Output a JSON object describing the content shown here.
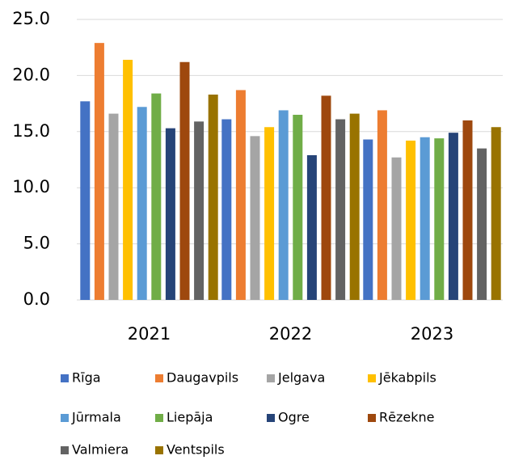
{
  "chart_data": {
    "type": "bar",
    "categories": [
      "2021",
      "2022",
      "2023"
    ],
    "series": [
      {
        "name": "Rīga",
        "color": "#4472c4",
        "values": [
          17.7,
          16.1,
          14.3
        ]
      },
      {
        "name": "Daugavpils",
        "color": "#ed7d31",
        "values": [
          22.9,
          18.7,
          16.9
        ]
      },
      {
        "name": "Jelgava",
        "color": "#a5a5a5",
        "values": [
          16.6,
          14.6,
          12.7
        ]
      },
      {
        "name": "Jēkabpils",
        "color": "#ffc000",
        "values": [
          21.4,
          15.4,
          14.2
        ]
      },
      {
        "name": "Jūrmala",
        "color": "#5b9bd5",
        "values": [
          17.2,
          16.9,
          14.5
        ]
      },
      {
        "name": "Liepāja",
        "color": "#70ad47",
        "values": [
          18.4,
          16.5,
          14.4
        ]
      },
      {
        "name": "Ogre",
        "color": "#264478",
        "values": [
          15.3,
          12.9,
          14.9
        ]
      },
      {
        "name": "Rēzekne",
        "color": "#9e480e",
        "values": [
          21.2,
          18.2,
          16.0
        ]
      },
      {
        "name": "Valmiera",
        "color": "#636363",
        "values": [
          15.9,
          16.1,
          13.5
        ]
      },
      {
        "name": "Ventspils",
        "color": "#997300",
        "values": [
          18.3,
          16.6,
          15.4
        ]
      }
    ],
    "ylim": [
      0,
      25
    ],
    "yticks": [
      {
        "value": 0,
        "label": "0.0"
      },
      {
        "value": 5,
        "label": "5.0"
      },
      {
        "value": 10,
        "label": "10.0"
      },
      {
        "value": 15,
        "label": "15.0"
      },
      {
        "value": 20,
        "label": "20.0"
      },
      {
        "value": 25,
        "label": "25.0"
      }
    ],
    "grid": true,
    "legend": "bottom"
  }
}
